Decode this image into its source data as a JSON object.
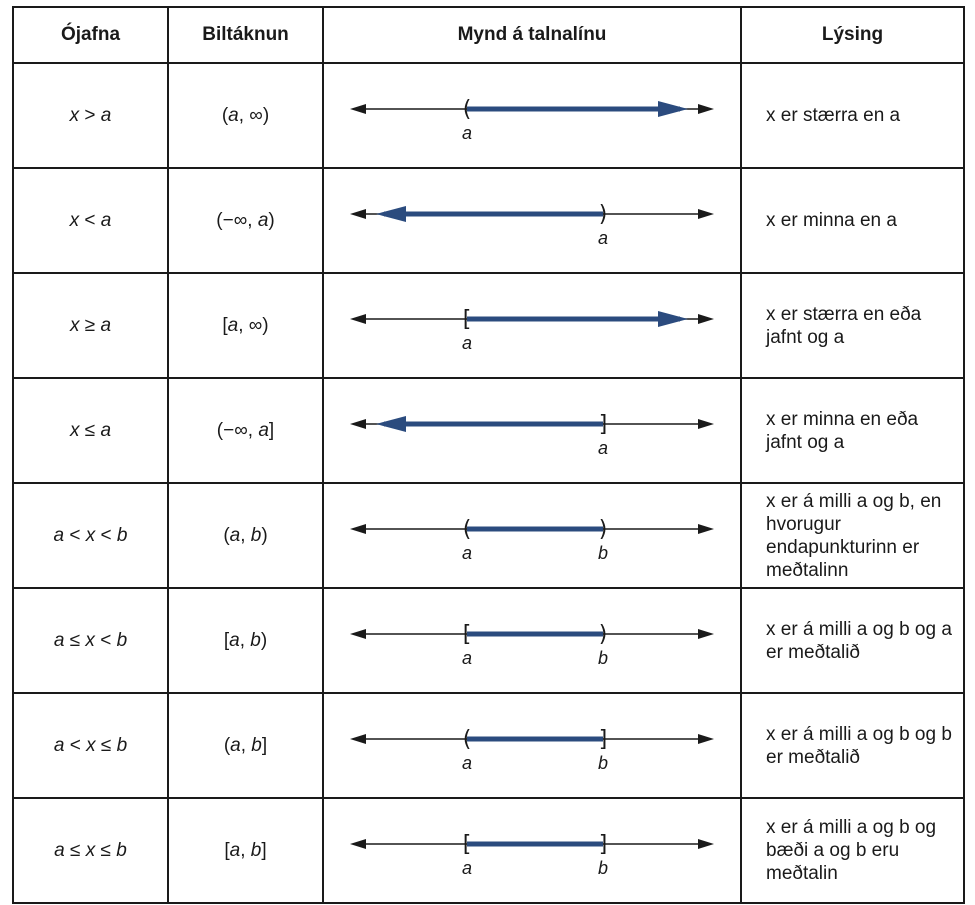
{
  "headers": {
    "inequality": "Ójafna",
    "interval": "Biltáknun",
    "graph": "Mynd á talnalínu",
    "description": "Lýsing"
  },
  "rows": [
    {
      "inequality": "x > a",
      "interval": "(a, ∞)",
      "graph": {
        "left": "(",
        "right": "arrow",
        "left_label": "a",
        "right_label": ""
      },
      "description": "x er stærra en a"
    },
    {
      "inequality": "x < a",
      "interval": "(−∞, a)",
      "graph": {
        "left": "arrow",
        "right": ")",
        "left_label": "",
        "right_label": "a"
      },
      "description": "x er minna en a"
    },
    {
      "inequality": "x ≥ a",
      "interval": "[a, ∞)",
      "graph": {
        "left": "[",
        "right": "arrow",
        "left_label": "a",
        "right_label": ""
      },
      "description": "x er stærra en eða jafnt og a"
    },
    {
      "inequality": "x ≤ a",
      "interval": "(−∞, a]",
      "graph": {
        "left": "arrow",
        "right": "]",
        "left_label": "",
        "right_label": "a"
      },
      "description": "x er minna en eða jafnt og a"
    },
    {
      "inequality": "a < x < b",
      "interval": "(a, b)",
      "graph": {
        "left": "(",
        "right": ")",
        "left_label": "a",
        "right_label": "b"
      },
      "description": "x er á milli a og b, en hvorugur endapunkturinn er meðtalinn"
    },
    {
      "inequality": "a ≤ x < b",
      "interval": "[a, b)",
      "graph": {
        "left": "[",
        "right": ")",
        "left_label": "a",
        "right_label": "b"
      },
      "description": "x er á milli a og b og a er meðtalið"
    },
    {
      "inequality": "a < x ≤ b",
      "interval": "(a, b]",
      "graph": {
        "left": "(",
        "right": "]",
        "left_label": "a",
        "right_label": "b"
      },
      "description": "x er á milli a og b og b er meðtalið"
    },
    {
      "inequality": "a ≤ x ≤ b",
      "interval": "[a, b]",
      "graph": {
        "left": "[",
        "right": "]",
        "left_label": "a",
        "right_label": "b"
      },
      "description": "x er á milli a og b og bæði a og b eru meðtalin"
    }
  ],
  "colors": {
    "interval": "#2b4b7e",
    "line": "#1a1a1a"
  }
}
